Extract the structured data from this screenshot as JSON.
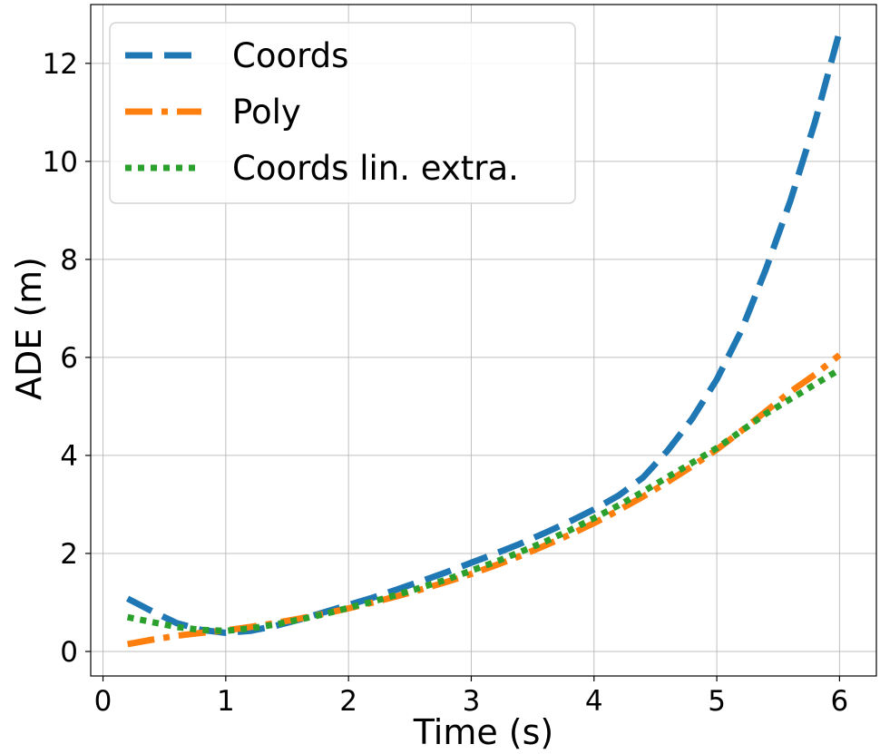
{
  "chart_data": {
    "type": "line",
    "title": "",
    "xlabel": "Time (s)",
    "ylabel": "ADE (m)",
    "xlim": [
      -0.1,
      6.3
    ],
    "ylim": [
      -0.5,
      13.2
    ],
    "xticks": [
      0,
      1,
      2,
      3,
      4,
      5,
      6
    ],
    "yticks": [
      0,
      2,
      4,
      6,
      8,
      10,
      12
    ],
    "grid": true,
    "legend_position": "top-left",
    "series": [
      {
        "name": "Coords",
        "color": "#1f77b4",
        "style": "dashed",
        "x": [
          0.2,
          0.4,
          0.6,
          0.8,
          1.0,
          1.2,
          1.4,
          1.6,
          1.8,
          2.0,
          2.2,
          2.4,
          2.6,
          2.8,
          3.0,
          3.2,
          3.4,
          3.6,
          3.8,
          4.0,
          4.2,
          4.4,
          4.6,
          4.8,
          5.0,
          5.2,
          5.4,
          5.6,
          5.8,
          6.0
        ],
        "y": [
          1.08,
          0.82,
          0.58,
          0.44,
          0.38,
          0.42,
          0.52,
          0.65,
          0.8,
          0.95,
          1.1,
          1.27,
          1.44,
          1.62,
          1.81,
          2.0,
          2.2,
          2.42,
          2.65,
          2.9,
          3.18,
          3.55,
          4.1,
          4.75,
          5.55,
          6.55,
          7.8,
          9.2,
          10.8,
          12.65
        ]
      },
      {
        "name": "Poly",
        "color": "#ff7f0e",
        "style": "dashdot",
        "x": [
          0.2,
          0.4,
          0.6,
          0.8,
          1.0,
          1.2,
          1.4,
          1.6,
          1.8,
          2.0,
          2.2,
          2.4,
          2.6,
          2.8,
          3.0,
          3.2,
          3.4,
          3.6,
          3.8,
          4.0,
          4.2,
          4.4,
          4.6,
          4.8,
          5.0,
          5.2,
          5.4,
          5.6,
          5.8,
          6.0
        ],
        "y": [
          0.15,
          0.24,
          0.32,
          0.38,
          0.43,
          0.5,
          0.58,
          0.67,
          0.77,
          0.88,
          1.0,
          1.13,
          1.27,
          1.42,
          1.58,
          1.76,
          1.95,
          2.16,
          2.38,
          2.62,
          2.88,
          3.16,
          3.46,
          3.78,
          4.12,
          4.5,
          4.9,
          5.3,
          5.65,
          6.05
        ]
      },
      {
        "name": "Coords lin. extra.",
        "color": "#2ca02c",
        "style": "dotted",
        "x": [
          0.2,
          0.4,
          0.6,
          0.8,
          1.0,
          1.2,
          1.4,
          1.6,
          1.8,
          2.0,
          2.2,
          2.4,
          2.6,
          2.8,
          3.0,
          3.2,
          3.4,
          3.6,
          3.8,
          4.0,
          4.2,
          4.4,
          4.6,
          4.8,
          5.0,
          5.2,
          5.4,
          5.6,
          5.8,
          6.0
        ],
        "y": [
          0.7,
          0.6,
          0.5,
          0.44,
          0.42,
          0.47,
          0.55,
          0.65,
          0.76,
          0.89,
          1.02,
          1.16,
          1.31,
          1.47,
          1.65,
          1.83,
          2.03,
          2.24,
          2.47,
          2.72,
          2.98,
          3.26,
          3.56,
          3.85,
          4.15,
          4.5,
          4.85,
          5.15,
          5.45,
          5.75
        ]
      }
    ]
  }
}
